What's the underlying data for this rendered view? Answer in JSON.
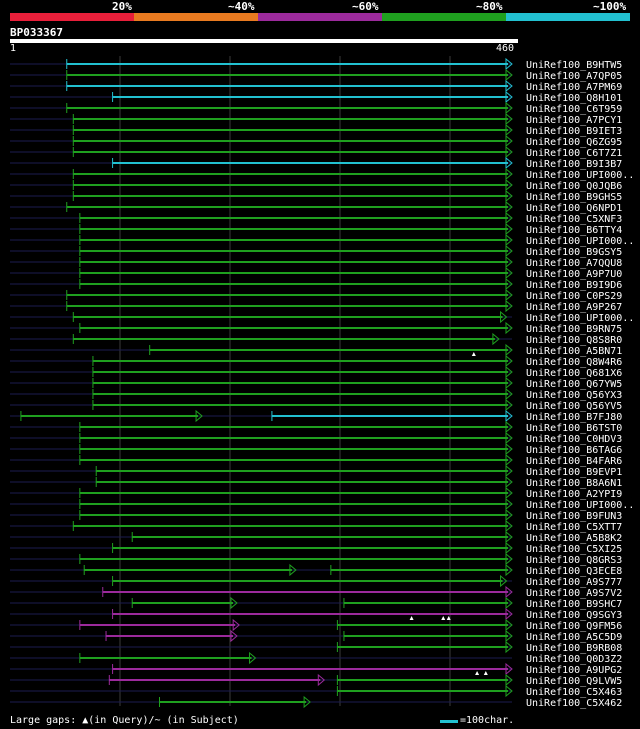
{
  "scale": {
    "labels": [
      "20%",
      "~40%",
      "~60%",
      "~80%",
      "~100%"
    ],
    "colors": [
      "#e81f3a",
      "#e87a20",
      "#9c2a9c",
      "#1fa01f",
      "#22c0d0"
    ]
  },
  "query": {
    "id": "BP033367",
    "start": "1",
    "end": "460",
    "length": 460
  },
  "colors": {
    "background": "#000000",
    "query_bar": "#ffffff",
    "unaligned": "#1c1c50",
    "grid": "#3a3a3a"
  },
  "hits": [
    {
      "label": "UniRef100_B9HTW5",
      "segments": [
        {
          "start": 52,
          "end": 460,
          "color": "#22c0d0"
        }
      ],
      "marks": []
    },
    {
      "label": "UniRef100_A7QP05",
      "segments": [
        {
          "start": 52,
          "end": 460,
          "color": "#1fa01f"
        }
      ],
      "marks": []
    },
    {
      "label": "UniRef100_A7PM69",
      "segments": [
        {
          "start": 52,
          "end": 460,
          "color": "#22c0d0"
        }
      ],
      "marks": []
    },
    {
      "label": "UniRef100_Q8H101",
      "segments": [
        {
          "start": 94,
          "end": 460,
          "color": "#22c0d0"
        }
      ],
      "marks": []
    },
    {
      "label": "UniRef100_C6T959",
      "segments": [
        {
          "start": 52,
          "end": 460,
          "color": "#1fa01f"
        }
      ],
      "marks": []
    },
    {
      "label": "UniRef100_A7PCY1",
      "segments": [
        {
          "start": 58,
          "end": 460,
          "color": "#1fa01f"
        }
      ],
      "marks": []
    },
    {
      "label": "UniRef100_B9IET3",
      "segments": [
        {
          "start": 58,
          "end": 460,
          "color": "#1fa01f"
        }
      ],
      "marks": []
    },
    {
      "label": "UniRef100_Q6ZG95",
      "segments": [
        {
          "start": 58,
          "end": 460,
          "color": "#1fa01f"
        }
      ],
      "marks": []
    },
    {
      "label": "UniRef100_C6T7Z1",
      "segments": [
        {
          "start": 58,
          "end": 460,
          "color": "#1fa01f"
        }
      ],
      "marks": []
    },
    {
      "label": "UniRef100_B9I3B7",
      "segments": [
        {
          "start": 94,
          "end": 460,
          "color": "#22c0d0"
        }
      ],
      "marks": []
    },
    {
      "label": "UniRef100_UPI000..",
      "segments": [
        {
          "start": 58,
          "end": 460,
          "color": "#1fa01f"
        }
      ],
      "marks": []
    },
    {
      "label": "UniRef100_Q0JQB6",
      "segments": [
        {
          "start": 58,
          "end": 460,
          "color": "#1fa01f"
        }
      ],
      "marks": []
    },
    {
      "label": "UniRef100_B9GHS5",
      "segments": [
        {
          "start": 58,
          "end": 460,
          "color": "#1fa01f"
        }
      ],
      "marks": []
    },
    {
      "label": "UniRef100_Q6NPD1",
      "segments": [
        {
          "start": 52,
          "end": 460,
          "color": "#1fa01f"
        }
      ],
      "marks": []
    },
    {
      "label": "UniRef100_C5XNF3",
      "segments": [
        {
          "start": 64,
          "end": 460,
          "color": "#1fa01f"
        }
      ],
      "marks": []
    },
    {
      "label": "UniRef100_B6TTY4",
      "segments": [
        {
          "start": 64,
          "end": 460,
          "color": "#1fa01f"
        }
      ],
      "marks": []
    },
    {
      "label": "UniRef100_UPI000..",
      "segments": [
        {
          "start": 64,
          "end": 460,
          "color": "#1fa01f"
        }
      ],
      "marks": []
    },
    {
      "label": "UniRef100_B9GSY5",
      "segments": [
        {
          "start": 64,
          "end": 460,
          "color": "#1fa01f"
        }
      ],
      "marks": []
    },
    {
      "label": "UniRef100_A7QQU8",
      "segments": [
        {
          "start": 64,
          "end": 460,
          "color": "#1fa01f"
        }
      ],
      "marks": []
    },
    {
      "label": "UniRef100_A9P7U0",
      "segments": [
        {
          "start": 64,
          "end": 460,
          "color": "#1fa01f"
        }
      ],
      "marks": []
    },
    {
      "label": "UniRef100_B9I9D6",
      "segments": [
        {
          "start": 64,
          "end": 460,
          "color": "#1fa01f"
        }
      ],
      "marks": []
    },
    {
      "label": "UniRef100_C0PS29",
      "segments": [
        {
          "start": 52,
          "end": 460,
          "color": "#1fa01f"
        }
      ],
      "marks": []
    },
    {
      "label": "UniRef100_A9P267",
      "segments": [
        {
          "start": 52,
          "end": 460,
          "color": "#1fa01f"
        }
      ],
      "marks": []
    },
    {
      "label": "UniRef100_UPI000..",
      "segments": [
        {
          "start": 58,
          "end": 455,
          "color": "#1fa01f"
        }
      ],
      "marks": []
    },
    {
      "label": "UniRef100_B9RN75",
      "segments": [
        {
          "start": 64,
          "end": 460,
          "color": "#1fa01f"
        }
      ],
      "marks": []
    },
    {
      "label": "UniRef100_Q8S8R0",
      "segments": [
        {
          "start": 58,
          "end": 448,
          "color": "#1fa01f"
        }
      ],
      "marks": []
    },
    {
      "label": "UniRef100_A5BN71",
      "segments": [
        {
          "start": 128,
          "end": 460,
          "color": "#1fa01f"
        }
      ],
      "marks": [
        {
          "pos": 425,
          "type": "query"
        }
      ]
    },
    {
      "label": "UniRef100_Q8W4R6",
      "segments": [
        {
          "start": 76,
          "end": 460,
          "color": "#1fa01f"
        }
      ],
      "marks": []
    },
    {
      "label": "UniRef100_Q681X6",
      "segments": [
        {
          "start": 76,
          "end": 460,
          "color": "#1fa01f"
        }
      ],
      "marks": []
    },
    {
      "label": "UniRef100_Q67YW5",
      "segments": [
        {
          "start": 76,
          "end": 460,
          "color": "#1fa01f"
        }
      ],
      "marks": []
    },
    {
      "label": "UniRef100_Q56YX3",
      "segments": [
        {
          "start": 76,
          "end": 460,
          "color": "#1fa01f"
        }
      ],
      "marks": []
    },
    {
      "label": "UniRef100_Q56YV5",
      "segments": [
        {
          "start": 76,
          "end": 460,
          "color": "#1fa01f"
        }
      ],
      "marks": []
    },
    {
      "label": "UniRef100_B7FJ80",
      "segments": [
        {
          "start": 10,
          "end": 176,
          "color": "#1fa01f"
        },
        {
          "start": 240,
          "end": 460,
          "color": "#22c0d0"
        }
      ],
      "marks": []
    },
    {
      "label": "UniRef100_B6TST0",
      "segments": [
        {
          "start": 64,
          "end": 460,
          "color": "#1fa01f"
        }
      ],
      "marks": []
    },
    {
      "label": "UniRef100_C0HDV3",
      "segments": [
        {
          "start": 64,
          "end": 460,
          "color": "#1fa01f"
        }
      ],
      "marks": []
    },
    {
      "label": "UniRef100_B6TAG6",
      "segments": [
        {
          "start": 64,
          "end": 460,
          "color": "#1fa01f"
        }
      ],
      "marks": []
    },
    {
      "label": "UniRef100_B4FAR6",
      "segments": [
        {
          "start": 64,
          "end": 460,
          "color": "#1fa01f"
        }
      ],
      "marks": []
    },
    {
      "label": "UniRef100_B9EVP1",
      "segments": [
        {
          "start": 79,
          "end": 460,
          "color": "#1fa01f"
        }
      ],
      "marks": []
    },
    {
      "label": "UniRef100_B8A6N1",
      "segments": [
        {
          "start": 79,
          "end": 460,
          "color": "#1fa01f"
        }
      ],
      "marks": []
    },
    {
      "label": "UniRef100_A2YPI9",
      "segments": [
        {
          "start": 64,
          "end": 460,
          "color": "#1fa01f"
        }
      ],
      "marks": []
    },
    {
      "label": "UniRef100_UPI000..",
      "segments": [
        {
          "start": 64,
          "end": 460,
          "color": "#1fa01f"
        }
      ],
      "marks": []
    },
    {
      "label": "UniRef100_B9FUN3",
      "segments": [
        {
          "start": 64,
          "end": 460,
          "color": "#1fa01f"
        }
      ],
      "marks": []
    },
    {
      "label": "UniRef100_C5XTT7",
      "segments": [
        {
          "start": 58,
          "end": 460,
          "color": "#1fa01f"
        }
      ],
      "marks": []
    },
    {
      "label": "UniRef100_A5B8K2",
      "segments": [
        {
          "start": 112,
          "end": 460,
          "color": "#1fa01f"
        }
      ],
      "marks": []
    },
    {
      "label": "UniRef100_C5XI25",
      "segments": [
        {
          "start": 94,
          "end": 460,
          "color": "#1fa01f"
        }
      ],
      "marks": []
    },
    {
      "label": "UniRef100_Q8GRS3",
      "segments": [
        {
          "start": 64,
          "end": 460,
          "color": "#1fa01f"
        }
      ],
      "marks": []
    },
    {
      "label": "UniRef100_Q3ECE8",
      "segments": [
        {
          "start": 68,
          "end": 262,
          "color": "#1fa01f"
        },
        {
          "start": 294,
          "end": 460,
          "color": "#1fa01f"
        }
      ],
      "marks": []
    },
    {
      "label": "UniRef100_A9S777",
      "segments": [
        {
          "start": 94,
          "end": 455,
          "color": "#1fa01f"
        }
      ],
      "marks": []
    },
    {
      "label": "UniRef100_A9S7V2",
      "segments": [
        {
          "start": 85,
          "end": 460,
          "color": "#9c2a9c"
        }
      ],
      "marks": []
    },
    {
      "label": "UniRef100_B9SHC7",
      "segments": [
        {
          "start": 112,
          "end": 208,
          "color": "#1fa01f"
        },
        {
          "start": 306,
          "end": 460,
          "color": "#1fa01f"
        }
      ],
      "marks": []
    },
    {
      "label": "UniRef100_Q9SGY3",
      "segments": [
        {
          "start": 94,
          "end": 460,
          "color": "#9c2a9c"
        }
      ],
      "marks": [
        {
          "pos": 368,
          "type": "query"
        },
        {
          "pos": 397,
          "type": "query"
        },
        {
          "pos": 402,
          "type": "query"
        }
      ]
    },
    {
      "label": "UniRef100_Q9FM56",
      "segments": [
        {
          "start": 64,
          "end": 210,
          "color": "#9c2a9c"
        },
        {
          "start": 300,
          "end": 460,
          "color": "#1fa01f"
        }
      ],
      "marks": []
    },
    {
      "label": "UniRef100_A5C5D9",
      "segments": [
        {
          "start": 88,
          "end": 208,
          "color": "#9c2a9c"
        },
        {
          "start": 306,
          "end": 460,
          "color": "#1fa01f"
        }
      ],
      "marks": []
    },
    {
      "label": "UniRef100_B9RB08",
      "segments": [
        {
          "start": 300,
          "end": 460,
          "color": "#1fa01f"
        }
      ],
      "marks": []
    },
    {
      "label": "UniRef100_Q0D3Z2",
      "segments": [
        {
          "start": 64,
          "end": 225,
          "color": "#1fa01f"
        }
      ],
      "marks": []
    },
    {
      "label": "UniRef100_A9UPG2",
      "segments": [
        {
          "start": 94,
          "end": 460,
          "color": "#9c2a9c"
        }
      ],
      "marks": [
        {
          "pos": 428,
          "type": "query"
        },
        {
          "pos": 436,
          "type": "query"
        }
      ]
    },
    {
      "label": "UniRef100_Q9LVW5",
      "segments": [
        {
          "start": 91,
          "end": 288,
          "color": "#9c2a9c"
        },
        {
          "start": 300,
          "end": 460,
          "color": "#1fa01f"
        }
      ],
      "marks": []
    },
    {
      "label": "UniRef100_C5X463",
      "segments": [
        {
          "start": 300,
          "end": 460,
          "color": "#1fa01f"
        }
      ],
      "marks": []
    },
    {
      "label": "UniRef100_C5X462",
      "segments": [
        {
          "start": 137,
          "end": 275,
          "color": "#1fa01f"
        }
      ],
      "marks": []
    }
  ],
  "footer": {
    "large_gaps": "Large gaps: ▲(in Query)/~ (in Subject)",
    "legend": "=100char."
  }
}
